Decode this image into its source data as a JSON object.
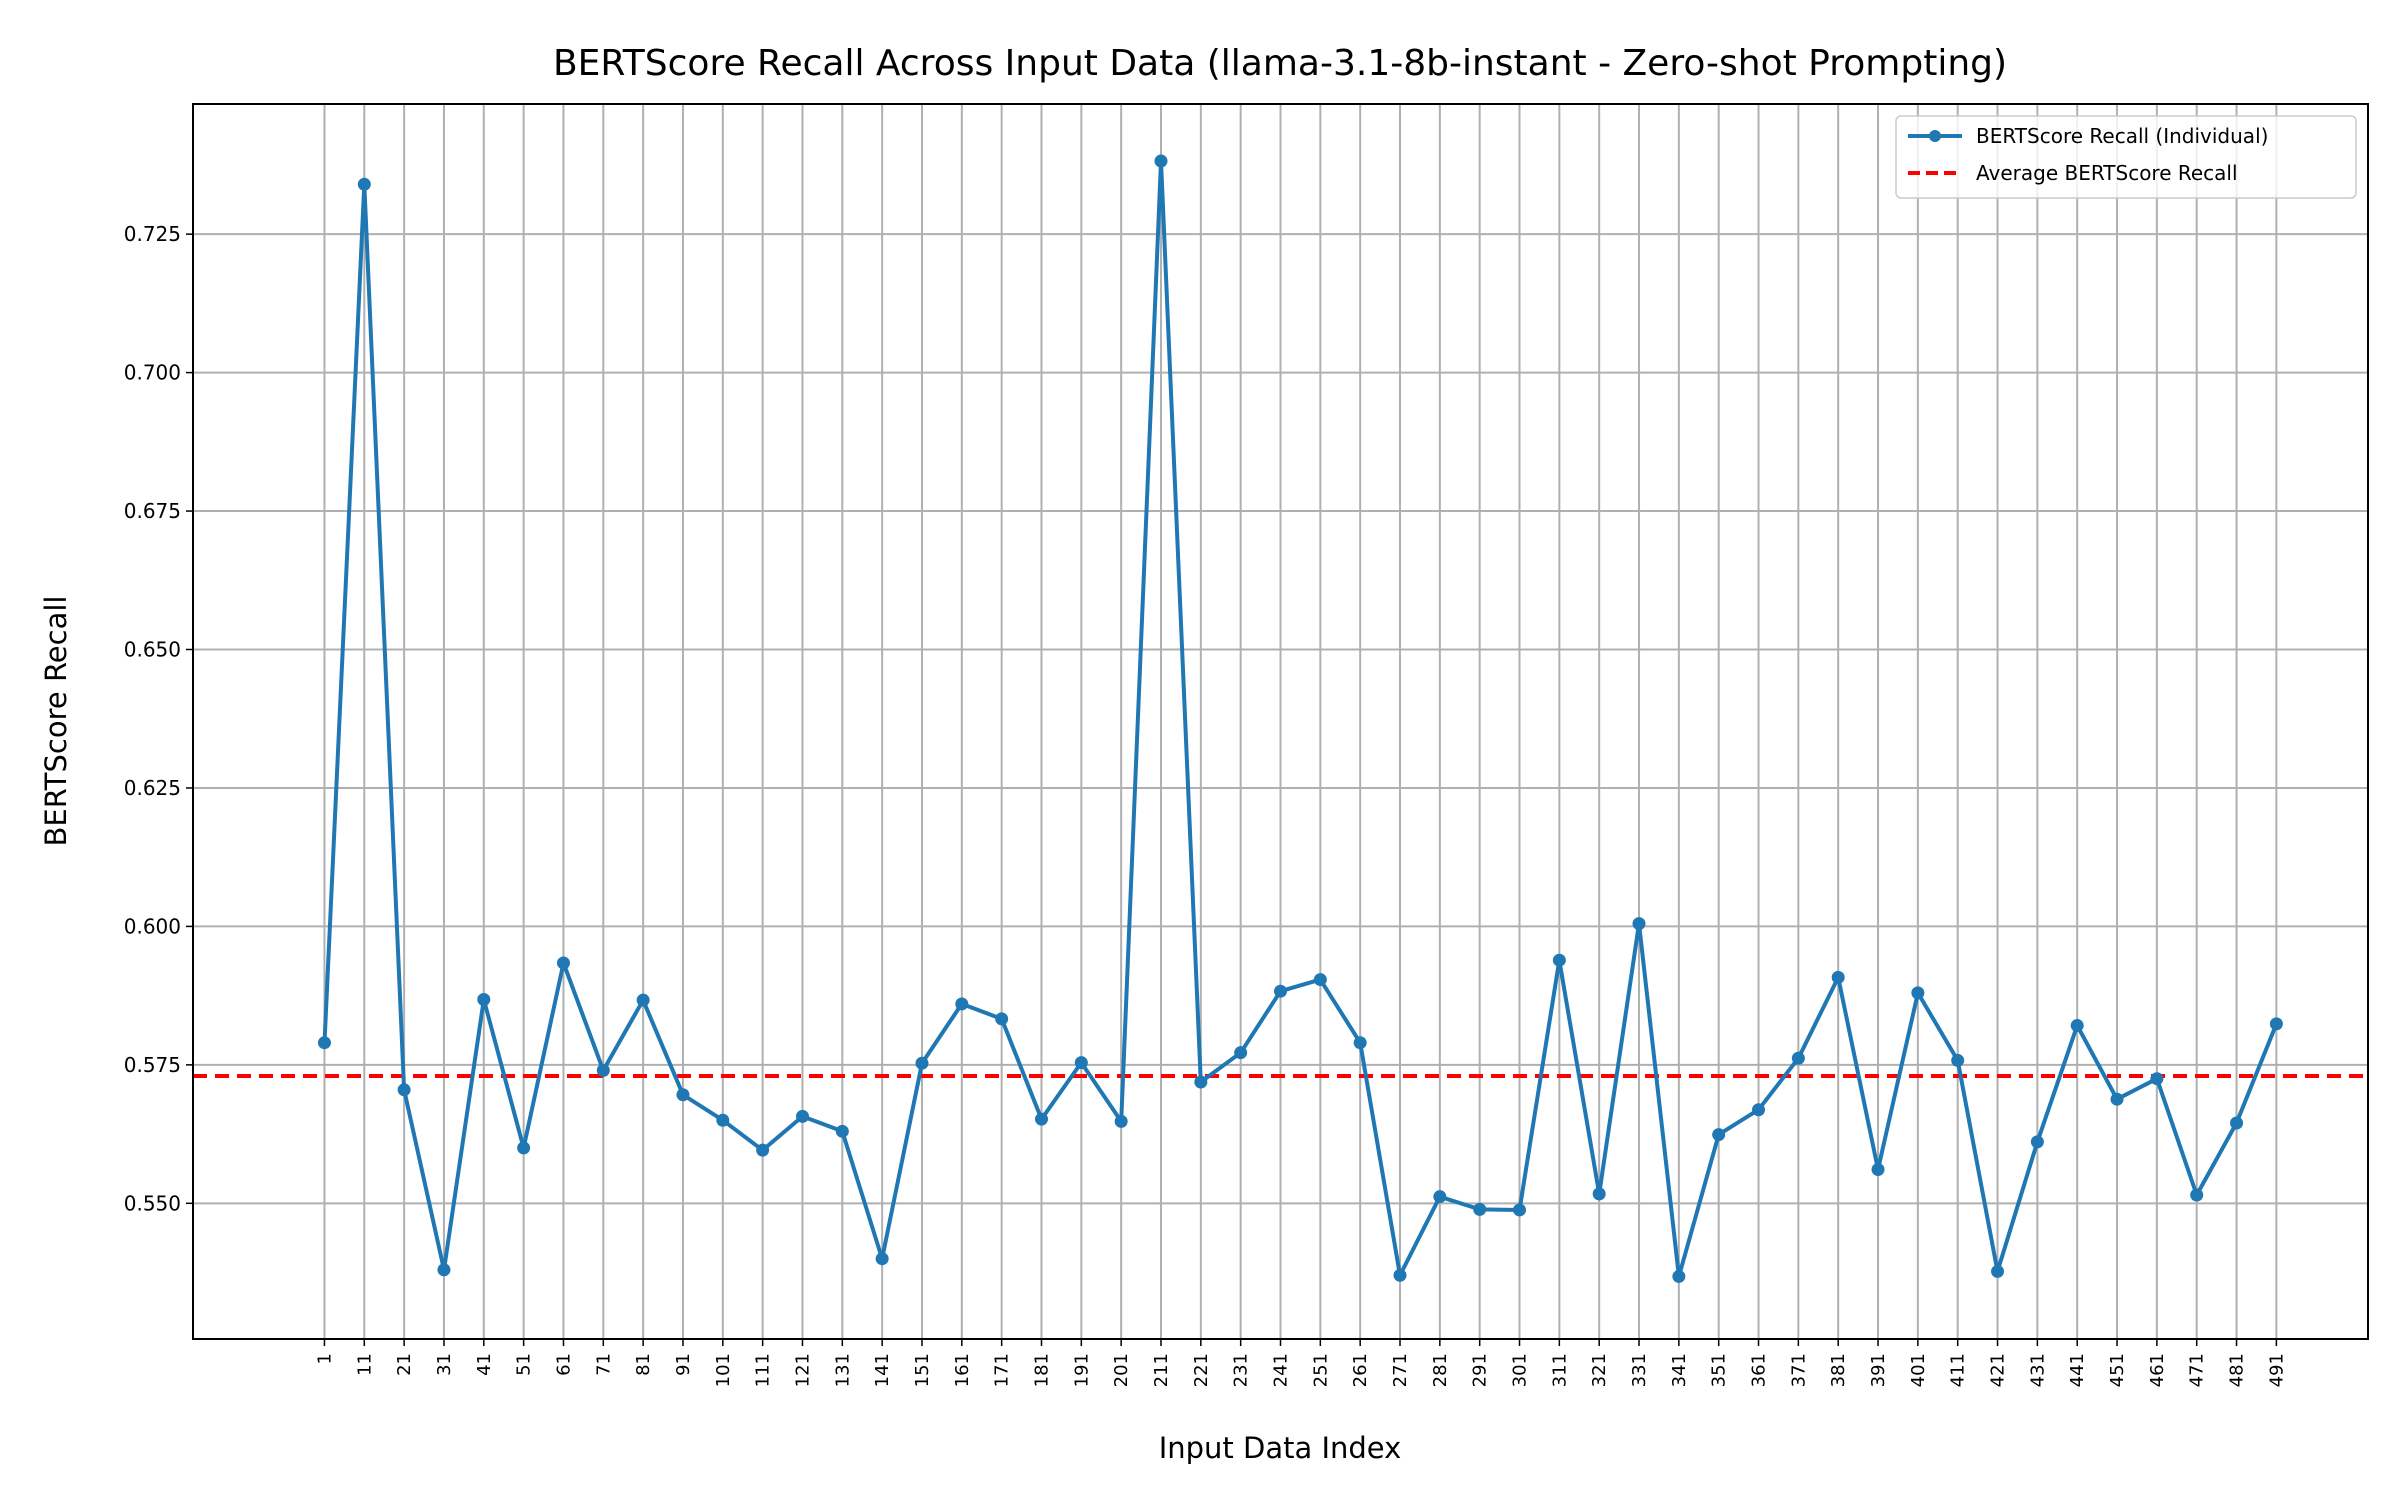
{
  "chart_data": {
    "type": "line",
    "title": "BERTScore Recall Across Input Data (llama-3.1-8b-instant - Zero-shot Prompting)",
    "xlabel": "Input Data Index",
    "ylabel": "BERTScore Recall",
    "x": [
      1,
      11,
      21,
      31,
      41,
      51,
      61,
      71,
      81,
      91,
      101,
      111,
      121,
      131,
      141,
      151,
      161,
      171,
      181,
      191,
      201,
      211,
      221,
      231,
      241,
      251,
      261,
      271,
      281,
      291,
      301,
      311,
      321,
      331,
      341,
      351,
      361,
      371,
      381,
      391,
      401,
      411,
      421,
      431,
      441,
      451,
      461,
      471,
      481,
      491
    ],
    "xticks": [
      "1",
      "11",
      "21",
      "31",
      "41",
      "51",
      "61",
      "71",
      "81",
      "91",
      "101",
      "111",
      "121",
      "131",
      "141",
      "151",
      "161",
      "171",
      "181",
      "191",
      "201",
      "211",
      "221",
      "231",
      "241",
      "251",
      "261",
      "271",
      "281",
      "291",
      "301",
      "311",
      "321",
      "331",
      "341",
      "351",
      "361",
      "371",
      "381",
      "391",
      "401",
      "411",
      "421",
      "431",
      "441",
      "451",
      "461",
      "471",
      "481",
      "491"
    ],
    "yticks": [
      "0.550",
      "0.575",
      "0.600",
      "0.625",
      "0.650",
      "0.675",
      "0.700",
      "0.725"
    ],
    "ytick_values": [
      0.55,
      0.575,
      0.6,
      0.625,
      0.65,
      0.675,
      0.7,
      0.725
    ],
    "xlim": [
      -32,
      514
    ],
    "ylim": [
      0.5255,
      0.7485
    ],
    "grid": true,
    "legend_position": "top-right",
    "series": [
      {
        "name": "BERTScore Recall (Individual)",
        "style": "solid-marker",
        "color": "#1f77b4",
        "values": [
          0.579,
          0.734,
          0.5705,
          0.538,
          0.5868,
          0.56,
          0.5934,
          0.574,
          0.5867,
          0.5696,
          0.565,
          0.5596,
          0.5657,
          0.563,
          0.54,
          0.5753,
          0.586,
          0.5833,
          0.5652,
          0.5754,
          0.5648,
          0.7382,
          0.5719,
          0.5772,
          0.5883,
          0.5904,
          0.579,
          0.537,
          0.5512,
          0.5489,
          0.5488,
          0.5939,
          0.5517,
          0.6005,
          0.5368,
          0.5624,
          0.5669,
          0.5762,
          0.5908,
          0.5561,
          0.588,
          0.5758,
          0.5377,
          0.5611,
          0.5821,
          0.5688,
          0.5725,
          0.5515,
          0.5645,
          0.5824
        ]
      },
      {
        "name": "Average BERTScore Recall",
        "style": "dashed",
        "color": "#ff0000",
        "value": 0.573
      }
    ]
  }
}
